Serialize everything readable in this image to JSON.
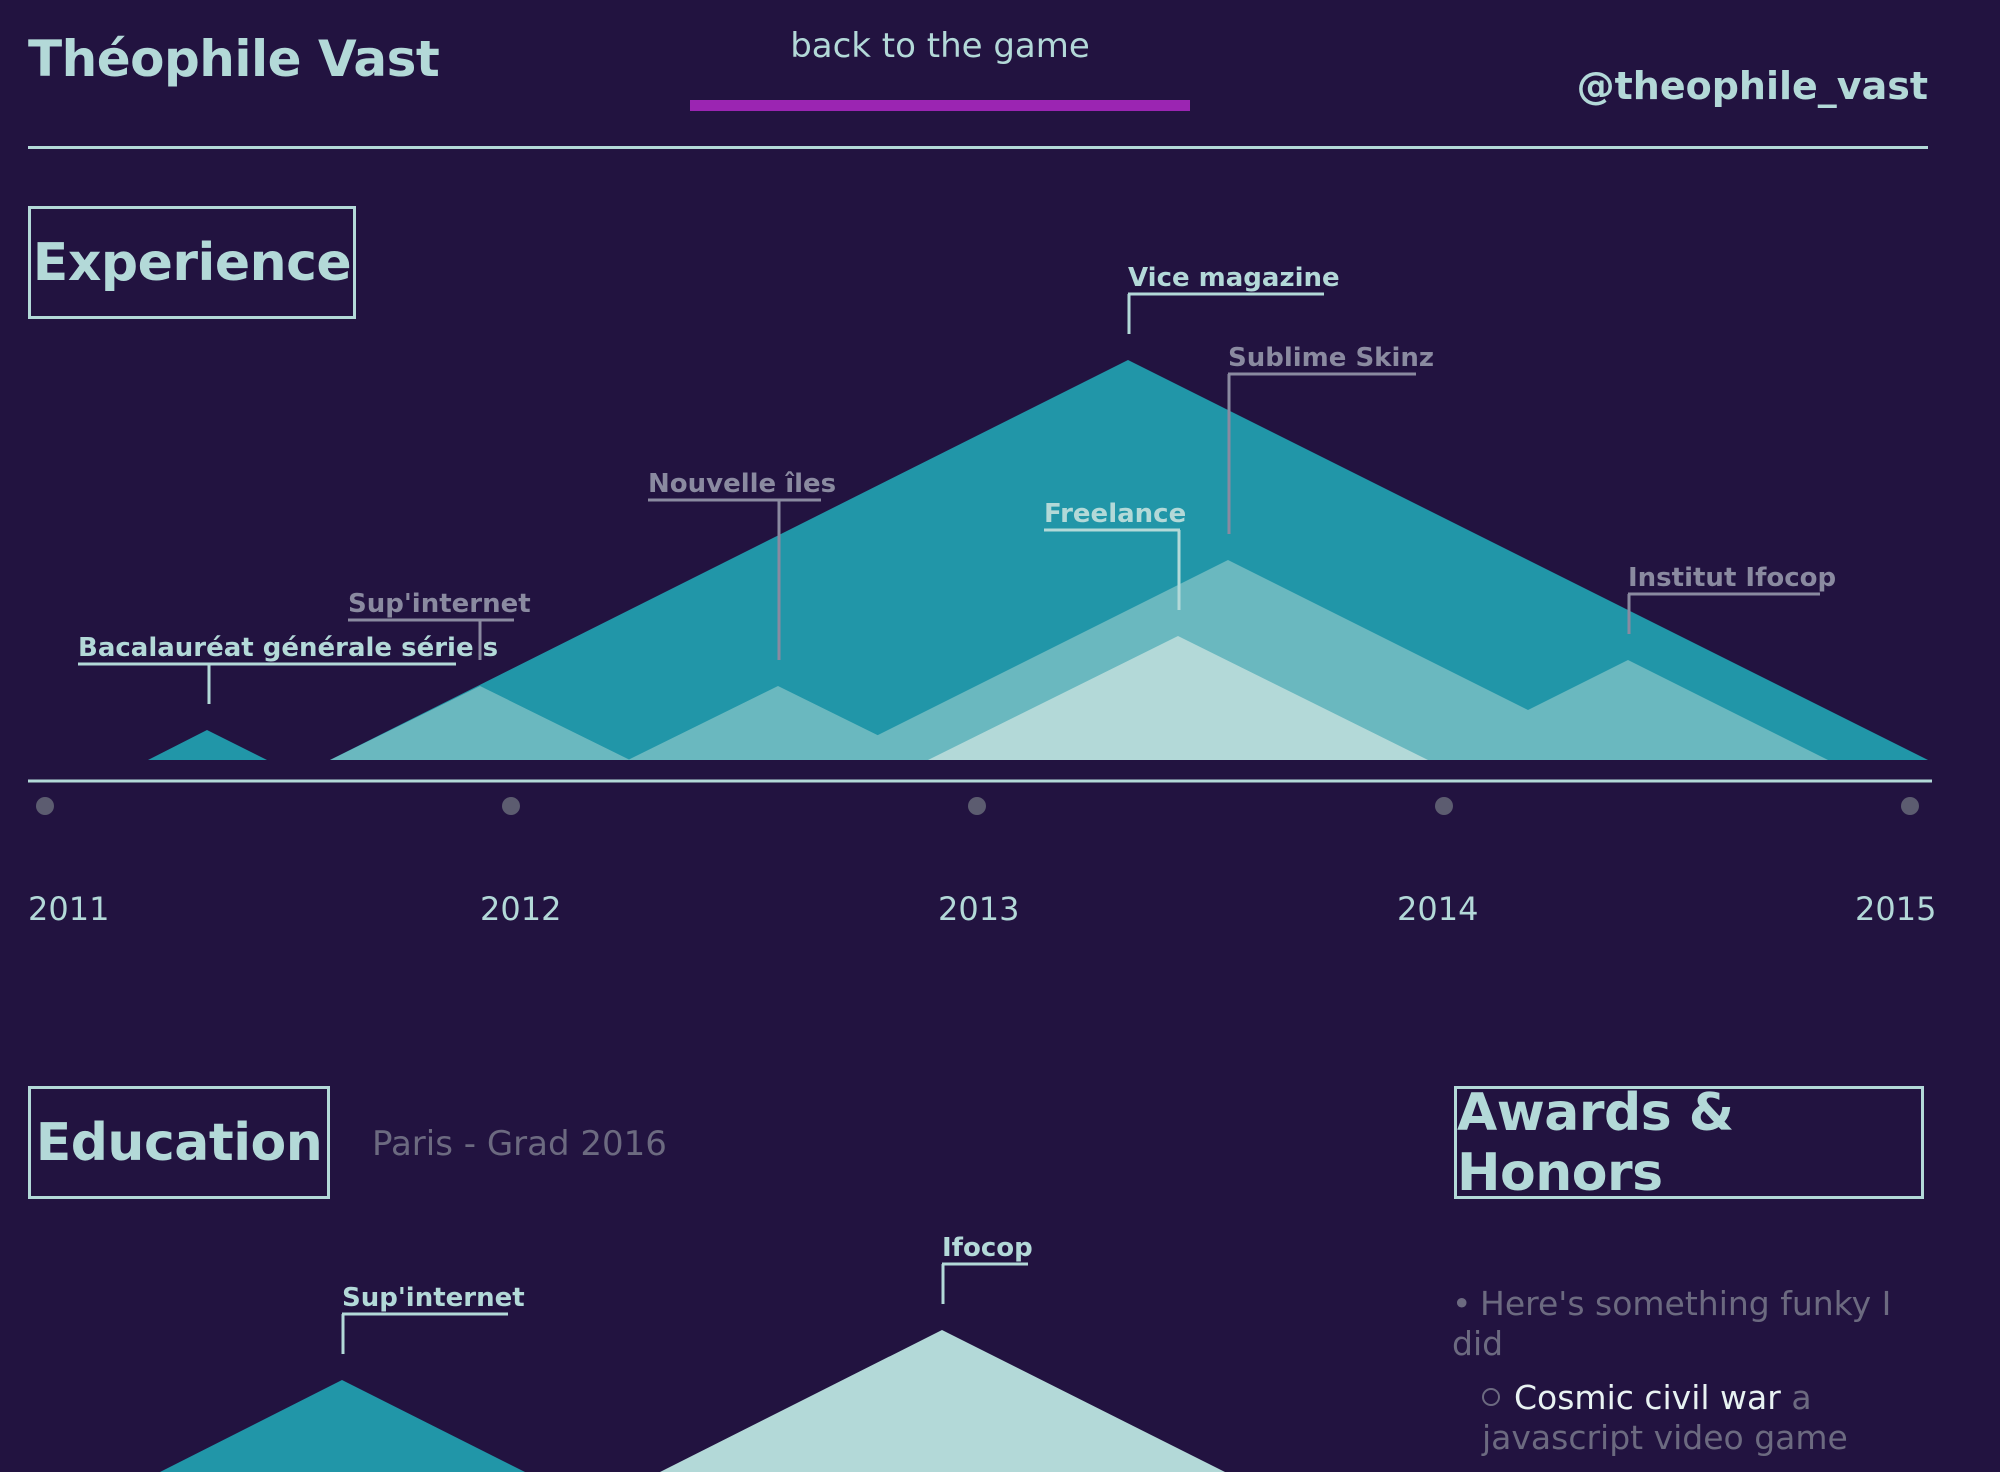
{
  "header": {
    "name": "Théophile Vast",
    "back_link": "back to the game",
    "handle": "@theophile_vast"
  },
  "experience": {
    "title": "Experience",
    "labels": [
      "Vice magazine",
      "Sublime Skinz",
      "Nouvelle îles",
      "Freelance",
      "Sup'internet",
      "Bacalauréat générale série s",
      "Institut Ifocop"
    ],
    "years": [
      "2011",
      "2012",
      "2013",
      "2014",
      "2015"
    ]
  },
  "education": {
    "title": "Education",
    "subtitle": "Paris - Grad 2016",
    "labels": [
      "Sup'internet",
      "Ifocop"
    ]
  },
  "awards": {
    "title": "Awards & Honors",
    "item": "Here's something funky I did",
    "sub_highlight": "Cosmic civil war",
    "sub_rest": " a javascript video game"
  },
  "colors": {
    "background": "#221340",
    "teal": "#2196a8",
    "teal_light": "#6ab8bf",
    "mint": "#b3d9d8",
    "accent_bar": "#9b25b2",
    "muted": "#6c6a80"
  }
}
